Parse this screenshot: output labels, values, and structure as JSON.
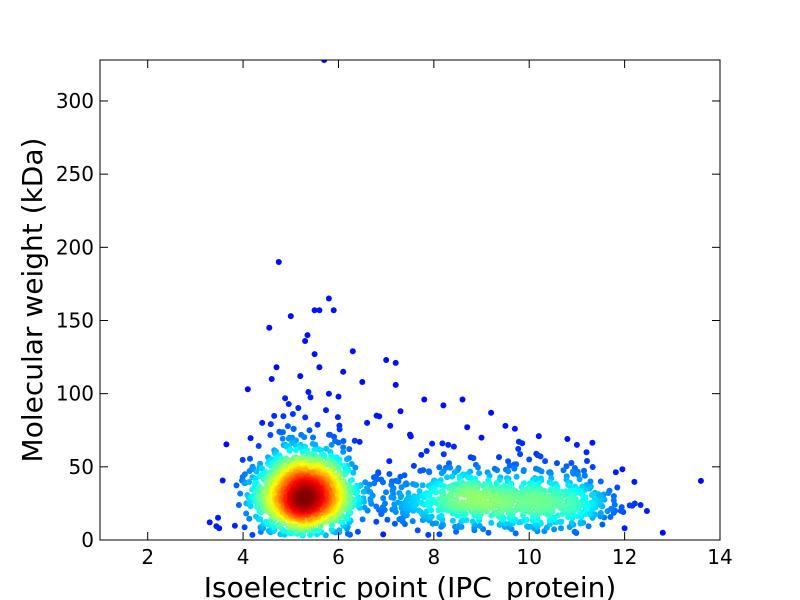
{
  "chart_data": {
    "type": "scatter",
    "title": "",
    "xlabel": "Isoelectric point (IPC_protein)",
    "ylabel": "Molecular weight (kDa)",
    "xlim": [
      1,
      14
    ],
    "ylim": [
      0,
      328
    ],
    "x_ticks": [
      2,
      4,
      6,
      8,
      10,
      12,
      14
    ],
    "y_ticks": [
      0,
      50,
      100,
      150,
      200,
      250,
      300
    ],
    "grid": false,
    "legend": "none",
    "color_scale": "point density (jet: blue = low, red = high)",
    "clusters": [
      {
        "center": [
          5.3,
          30
        ],
        "spread": [
          0.55,
          14
        ],
        "count": 1500
      },
      {
        "center": [
          8.8,
          27
        ],
        "spread": [
          0.9,
          10
        ],
        "count": 650
      },
      {
        "center": [
          10.6,
          24
        ],
        "spread": [
          0.7,
          10
        ],
        "count": 350
      }
    ],
    "outliers": [
      [
        5.7,
        328
      ],
      [
        4.75,
        190
      ],
      [
        5.8,
        165
      ],
      [
        5.5,
        157
      ],
      [
        5.6,
        157
      ],
      [
        5.9,
        157
      ],
      [
        5.0,
        153
      ],
      [
        4.55,
        145
      ],
      [
        5.35,
        140
      ],
      [
        5.3,
        136
      ],
      [
        6.3,
        129
      ],
      [
        5.5,
        127
      ],
      [
        7.0,
        123
      ],
      [
        7.2,
        121
      ],
      [
        4.7,
        118
      ],
      [
        5.6,
        118
      ],
      [
        6.1,
        115
      ],
      [
        5.2,
        112
      ],
      [
        4.6,
        110
      ],
      [
        6.5,
        108
      ],
      [
        7.2,
        106
      ],
      [
        4.1,
        103
      ],
      [
        5.8,
        100
      ],
      [
        6.0,
        98
      ],
      [
        7.8,
        96
      ],
      [
        8.6,
        96
      ],
      [
        8.2,
        92
      ],
      [
        9.2,
        87
      ],
      [
        6.8,
        85
      ],
      [
        7.3,
        88
      ],
      [
        8.7,
        77
      ],
      [
        9.5,
        78
      ],
      [
        9.7,
        76
      ],
      [
        10.8,
        69
      ],
      [
        11.0,
        65
      ],
      [
        10.2,
        71
      ],
      [
        11.2,
        60
      ],
      [
        12.8,
        5
      ],
      [
        3.3,
        12
      ],
      [
        3.5,
        8
      ],
      [
        4.2,
        50
      ],
      [
        4.4,
        80
      ],
      [
        9.0,
        70
      ],
      [
        8.3,
        65
      ],
      [
        10.0,
        55
      ],
      [
        11.5,
        40
      ],
      [
        11.8,
        20
      ],
      [
        12.0,
        8
      ],
      [
        7.5,
        72
      ],
      [
        6.6,
        80
      ]
    ]
  }
}
